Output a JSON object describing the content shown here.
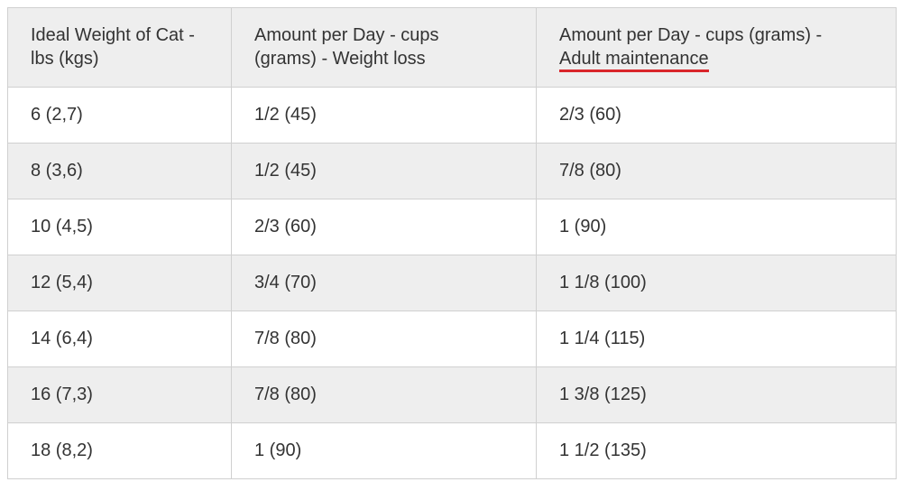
{
  "table": {
    "header": [
      "Ideal Weight of Cat - lbs (kgs)",
      "Amount per Day - cups (grams) - Weight loss",
      [
        "Amount per Day - cups (grams) -",
        "Adult maintenance"
      ]
    ],
    "rows": [
      [
        "6 (2,7)",
        "1/2 (45)",
        "2/3 (60)"
      ],
      [
        "8 (3,6)",
        "1/2 (45)",
        "7/8 (80)"
      ],
      [
        "10 (4,5)",
        "2/3 (60)",
        "1 (90)"
      ],
      [
        "12 (5,4)",
        "3/4 (70)",
        "1 1/8 (100)"
      ],
      [
        "14 (6,4)",
        "7/8 (80)",
        "1 1/4 (115)"
      ],
      [
        "16 (7,3)",
        "7/8 (80)",
        "1 3/8 (125)"
      ],
      [
        "18 (8,2)",
        "1 (90)",
        "1 1/2 (135)"
      ]
    ]
  }
}
